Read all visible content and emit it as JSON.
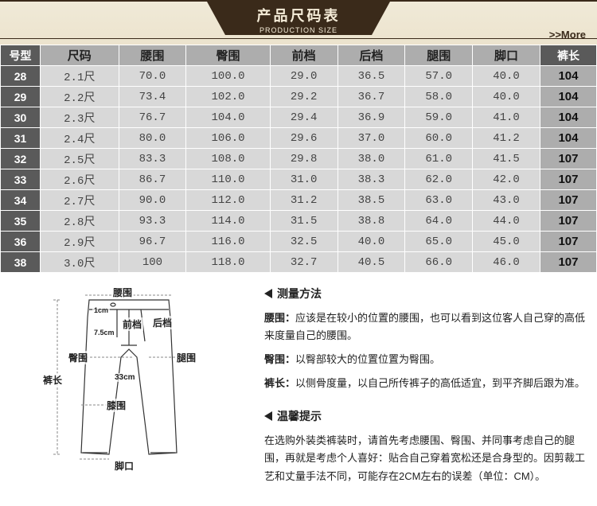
{
  "banner": {
    "title_cn": "产品尺码表",
    "title_en": "PRODUCTION  SIZE",
    "more": ">>More"
  },
  "table": {
    "row_head": "号型",
    "col_heads": [
      "尺码",
      "腰围",
      "臀围",
      "前档",
      "后档",
      "腿围",
      "脚口"
    ],
    "len_head": "裤长",
    "rows": [
      {
        "size": "28",
        "cells": [
          "2.1尺",
          "70.0",
          "100.0",
          "29.0",
          "36.5",
          "57.0",
          "40.0"
        ],
        "len": "104"
      },
      {
        "size": "29",
        "cells": [
          "2.2尺",
          "73.4",
          "102.0",
          "29.2",
          "36.7",
          "58.0",
          "40.0"
        ],
        "len": "104"
      },
      {
        "size": "30",
        "cells": [
          "2.3尺",
          "76.7",
          "104.0",
          "29.4",
          "36.9",
          "59.0",
          "41.0"
        ],
        "len": "104"
      },
      {
        "size": "31",
        "cells": [
          "2.4尺",
          "80.0",
          "106.0",
          "29.6",
          "37.0",
          "60.0",
          "41.2"
        ],
        "len": "104"
      },
      {
        "size": "32",
        "cells": [
          "2.5尺",
          "83.3",
          "108.0",
          "29.8",
          "38.0",
          "61.0",
          "41.5"
        ],
        "len": "107"
      },
      {
        "size": "33",
        "cells": [
          "2.6尺",
          "86.7",
          "110.0",
          "31.0",
          "38.3",
          "62.0",
          "42.0"
        ],
        "len": "107"
      },
      {
        "size": "34",
        "cells": [
          "2.7尺",
          "90.0",
          "112.0",
          "31.2",
          "38.5",
          "63.0",
          "43.0"
        ],
        "len": "107"
      },
      {
        "size": "35",
        "cells": [
          "2.8尺",
          "93.3",
          "114.0",
          "31.5",
          "38.8",
          "64.0",
          "44.0"
        ],
        "len": "107"
      },
      {
        "size": "36",
        "cells": [
          "2.9尺",
          "96.7",
          "116.0",
          "32.5",
          "40.0",
          "65.0",
          "45.0"
        ],
        "len": "107"
      },
      {
        "size": "38",
        "cells": [
          "3.0尺",
          "100",
          "118.0",
          "32.7",
          "40.5",
          "66.0",
          "46.0"
        ],
        "len": "107"
      }
    ]
  },
  "diagram": {
    "labels": {
      "waist": "腰围",
      "front": "前档",
      "back": "后档",
      "hip": "臀围",
      "thigh": "腿围",
      "length": "裤长",
      "knee": "膝围",
      "hem": "脚口",
      "cm1": "1cm",
      "cm7": "7.5cm",
      "cm33": "33cm"
    }
  },
  "info": {
    "method_title": "测量方法",
    "waist_label": "腰围：",
    "waist_text": "应该是在较小的位置的腰围，也可以看到这位客人自己穿的高低来度量自己的腰围。",
    "hip_label": "臀围：",
    "hip_text": "以臀部较大的位置位置为臀围。",
    "len_label": "裤长：",
    "len_text": "以侧骨度量，以自己所传裤子的高低适宜，到平齐脚后跟为准。",
    "tips_title": "温馨提示",
    "tips_text": "在选购外装类裤装时，请首先考虑腰围、臀围、并同事考虑自己的腿围，再就是考虑个人喜好：贴合自己穿着宽松还是合身型的。因剪裁工艺和丈量手法不同，可能存在2CM左右的误差（单位：CM）。"
  },
  "style": {
    "banner_bg": "#3a2a1a",
    "banner_strip": "#f0ead8",
    "header_grey": "#adadad",
    "row_head_grey": "#5a5a5a",
    "cell_grey": "#d8d8d8"
  }
}
